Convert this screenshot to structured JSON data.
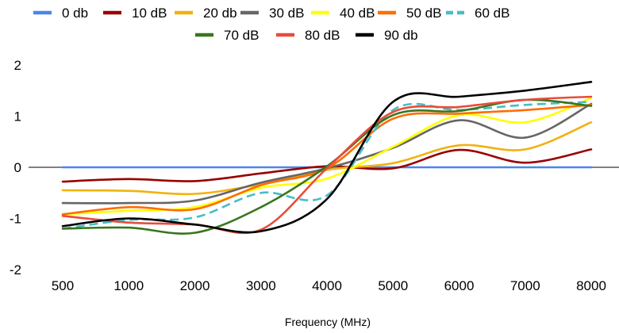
{
  "chart_data": {
    "type": "line",
    "title": "",
    "xlabel": "Frequency (MHz)",
    "ylabel": "",
    "categories": [
      "500",
      "1000",
      "2000",
      "3000",
      "4000",
      "5000",
      "6000",
      "7000",
      "8000"
    ],
    "ylim": [
      -2,
      2
    ],
    "yticks": [
      -2,
      -1,
      0,
      1,
      2
    ],
    "grid": false,
    "legend": "top",
    "series": [
      {
        "name": "0 db",
        "color": "#4a86e8",
        "dash": false,
        "values": [
          0,
          0,
          0,
          0,
          0,
          0,
          0,
          0,
          0
        ]
      },
      {
        "name": "10 dB",
        "color": "#990000",
        "dash": false,
        "values": [
          -0.28,
          -0.23,
          -0.27,
          -0.12,
          0.02,
          -0.02,
          0.34,
          0.09,
          0.35
        ]
      },
      {
        "name": "20 db",
        "color": "#f1b20f",
        "dash": false,
        "values": [
          -0.45,
          -0.46,
          -0.52,
          -0.33,
          -0.05,
          0.08,
          0.43,
          0.35,
          0.88
        ]
      },
      {
        "name": "30 dB",
        "color": "#666666",
        "dash": false,
        "values": [
          -0.7,
          -0.7,
          -0.65,
          -0.3,
          -0.02,
          0.38,
          0.92,
          0.58,
          1.24
        ]
      },
      {
        "name": "40 dB",
        "color": "#ffff00",
        "dash": false,
        "values": [
          -0.92,
          -0.85,
          -0.78,
          -0.4,
          -0.22,
          0.4,
          1.02,
          0.88,
          1.35
        ]
      },
      {
        "name": "50 dB",
        "color": "#ff6d01",
        "dash": false,
        "values": [
          -0.92,
          -0.78,
          -0.82,
          -0.35,
          -0.02,
          0.95,
          1.05,
          1.12,
          1.22
        ]
      },
      {
        "name": "60 dB",
        "color": "#46bdc6",
        "dash": true,
        "values": [
          -1.2,
          -1.03,
          -0.98,
          -0.5,
          -0.55,
          1.12,
          1.12,
          1.22,
          1.28
        ]
      },
      {
        "name": "70 dB",
        "color": "#38761d",
        "dash": false,
        "values": [
          -1.2,
          -1.18,
          -1.28,
          -0.78,
          0.02,
          1.02,
          1.1,
          1.32,
          1.2
        ]
      },
      {
        "name": "80 dB",
        "color": "#e84c3d",
        "dash": false,
        "values": [
          -0.95,
          -1.08,
          -1.12,
          -1.22,
          -0.02,
          1.08,
          1.18,
          1.32,
          1.38
        ]
      },
      {
        "name": "90 db",
        "color": "#000000",
        "dash": false,
        "values": [
          -1.15,
          -1.0,
          -1.12,
          -1.25,
          -0.62,
          1.28,
          1.38,
          1.5,
          1.67
        ]
      }
    ]
  }
}
